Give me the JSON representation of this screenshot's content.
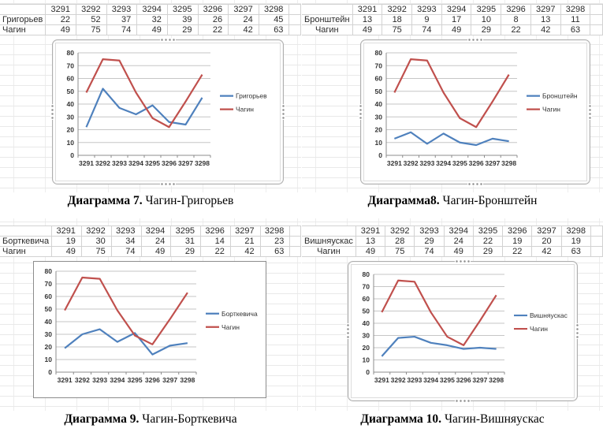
{
  "colors": {
    "series_blue": "#4F81BD",
    "series_red": "#C0504D",
    "chart_grid": "#c6c6c6",
    "chart_axis": "#8c8c8c",
    "chart_text": "#333333"
  },
  "panels": [
    {
      "caption": {
        "bold": "Диаграмма 7.",
        "rest": " Чагин-Григорьев"
      },
      "table": {
        "columns": [
          "3291",
          "3292",
          "3293",
          "3294",
          "3295",
          "3296",
          "3297",
          "3298"
        ],
        "rows": [
          {
            "label": "Григорьев",
            "values": [
              22,
              52,
              37,
              32,
              39,
              26,
              24,
              45
            ]
          },
          {
            "label": "Чагин",
            "values": [
              49,
              75,
              74,
              49,
              29,
              22,
              42,
              63
            ]
          }
        ]
      }
    },
    {
      "caption": {
        "bold": "Диаграмма8.",
        "rest": " Чагин-Бронштейн"
      },
      "table": {
        "columns": [
          "3291",
          "3292",
          "3293",
          "3294",
          "3295",
          "3296",
          "3297",
          "3298"
        ],
        "rows": [
          {
            "label": "Бронштейн",
            "values": [
              13,
              18,
              9,
              17,
              10,
              8,
              13,
              11
            ]
          },
          {
            "label": "Чагин",
            "values": [
              49,
              75,
              74,
              49,
              29,
              22,
              42,
              63
            ]
          }
        ]
      }
    },
    {
      "caption": {
        "bold": "Диаграмма 9.",
        "rest": " Чагин-Борткевича"
      },
      "table": {
        "columns": [
          "3291",
          "3292",
          "3293",
          "3294",
          "3295",
          "3296",
          "3297",
          "3298"
        ],
        "rows": [
          {
            "label": "Борткевича",
            "values": [
              19,
              30,
              34,
              24,
              31,
              14,
              21,
              23
            ]
          },
          {
            "label": "Чагин",
            "values": [
              49,
              75,
              74,
              49,
              29,
              22,
              42,
              63
            ]
          }
        ]
      }
    },
    {
      "caption": {
        "bold": "Диаграмма 10.",
        "rest": " Чагин-Вишняускас"
      },
      "table": {
        "columns": [
          "3291",
          "3292",
          "3293",
          "3294",
          "3295",
          "3296",
          "3297",
          "3298"
        ],
        "rows": [
          {
            "label": "Вишняускас",
            "values": [
              13,
              28,
              29,
              24,
              22,
              19,
              20,
              19
            ]
          },
          {
            "label": "Чагин",
            "values": [
              49,
              75,
              74,
              49,
              29,
              22,
              42,
              63
            ]
          }
        ]
      }
    }
  ],
  "chart_data": [
    {
      "type": "line",
      "x": [
        "3291",
        "3292",
        "3293",
        "3294",
        "3295",
        "3296",
        "3297",
        "3298"
      ],
      "series": [
        {
          "name": "Григорьев",
          "color": "#4F81BD",
          "values": [
            22,
            52,
            37,
            32,
            39,
            26,
            24,
            45
          ]
        },
        {
          "name": "Чагин",
          "color": "#C0504D",
          "values": [
            49,
            75,
            74,
            49,
            29,
            22,
            42,
            63
          ]
        }
      ],
      "ylim": [
        0,
        80
      ],
      "ytick_step": 10,
      "grid": true,
      "legend_position": "right"
    },
    {
      "type": "line",
      "x": [
        "3291",
        "3292",
        "3293",
        "3294",
        "3295",
        "3296",
        "3297",
        "3298"
      ],
      "series": [
        {
          "name": "Бронштейн",
          "color": "#4F81BD",
          "values": [
            13,
            18,
            9,
            17,
            10,
            8,
            13,
            11
          ]
        },
        {
          "name": "Чагин",
          "color": "#C0504D",
          "values": [
            49,
            75,
            74,
            49,
            29,
            22,
            42,
            63
          ]
        }
      ],
      "ylim": [
        0,
        80
      ],
      "ytick_step": 10,
      "grid": true,
      "legend_position": "right"
    },
    {
      "type": "line",
      "x": [
        "3291",
        "3292",
        "3293",
        "3294",
        "3295",
        "3296",
        "3297",
        "3298"
      ],
      "series": [
        {
          "name": "Борткевича",
          "color": "#4F81BD",
          "values": [
            19,
            30,
            34,
            24,
            31,
            14,
            21,
            23
          ]
        },
        {
          "name": "Чагин",
          "color": "#C0504D",
          "values": [
            49,
            75,
            74,
            49,
            29,
            22,
            42,
            63
          ]
        }
      ],
      "ylim": [
        0,
        80
      ],
      "ytick_step": 10,
      "grid": true,
      "legend_position": "right"
    },
    {
      "type": "line",
      "x": [
        "3291",
        "3292",
        "3293",
        "3294",
        "3295",
        "3296",
        "3297",
        "3298"
      ],
      "series": [
        {
          "name": "Вишняускас",
          "color": "#4F81BD",
          "values": [
            13,
            28,
            29,
            24,
            22,
            19,
            20,
            19
          ]
        },
        {
          "name": "Чагин",
          "color": "#C0504D",
          "values": [
            49,
            75,
            74,
            49,
            29,
            22,
            42,
            63
          ]
        }
      ],
      "ylim": [
        0,
        80
      ],
      "ytick_step": 10,
      "grid": true,
      "legend_position": "right"
    }
  ]
}
